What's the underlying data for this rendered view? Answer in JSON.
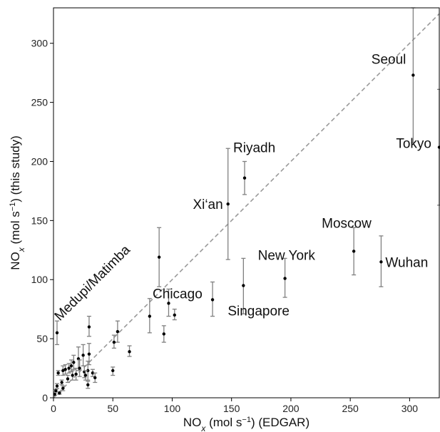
{
  "chart_data": {
    "type": "scatter",
    "title": "",
    "xlabel_parts": {
      "pre": "NO",
      "sub": "x",
      "mid": " (mol s",
      "sup": "−1",
      "post": ") (EDGAR)"
    },
    "ylabel_parts": {
      "pre": "NO",
      "sub": "x",
      "mid": " (mol s",
      "sup": "−1",
      "post": ") (this study)"
    },
    "xlim": [
      0,
      325
    ],
    "ylim": [
      0,
      330
    ],
    "xticks": [
      0,
      50,
      100,
      150,
      200,
      250,
      300
    ],
    "yticks": [
      0,
      50,
      100,
      150,
      200,
      250,
      300
    ],
    "one_to_one_line": true,
    "point_color": "#000000",
    "errorbar_color": "#808080",
    "line_color": "#999999",
    "points": [
      {
        "x": 303,
        "y": 273,
        "yerr_low": 216,
        "yerr_high": 330,
        "label": "Seoul"
      },
      {
        "x": 325,
        "y": 212,
        "yerr_low": 163,
        "yerr_high": 261,
        "label": "Tokyo"
      },
      {
        "x": 161,
        "y": 186,
        "yerr_low": 172,
        "yerr_high": 200,
        "label": "Riyadh"
      },
      {
        "x": 147,
        "y": 164,
        "yerr_low": 117,
        "yerr_high": 211,
        "label": "Xi‘an"
      },
      {
        "x": 253,
        "y": 124,
        "yerr_low": 104,
        "yerr_high": 144,
        "label": "Moscow"
      },
      {
        "x": 276,
        "y": 115,
        "yerr_low": 94,
        "yerr_high": 137,
        "label": "Wuhan"
      },
      {
        "x": 195,
        "y": 101,
        "yerr_low": 85,
        "yerr_high": 118,
        "label": "New York"
      },
      {
        "x": 134,
        "y": 83,
        "yerr_low": 69,
        "yerr_high": 98,
        "label": "Chicago"
      },
      {
        "x": 160,
        "y": 95,
        "yerr_low": 71,
        "yerr_high": 118,
        "label": "Singapore"
      },
      {
        "x": 3,
        "y": 55,
        "yerr_low": 45,
        "yerr_high": 65,
        "label": "Medupi/Matimba"
      },
      {
        "x": 89,
        "y": 119,
        "yerr_low": 94,
        "yerr_high": 144
      },
      {
        "x": 81,
        "y": 69,
        "yerr_low": 55,
        "yerr_high": 84
      },
      {
        "x": 97,
        "y": 80,
        "yerr_low": 69,
        "yerr_high": 92
      },
      {
        "x": 102,
        "y": 70,
        "yerr_low": 66,
        "yerr_high": 75
      },
      {
        "x": 93,
        "y": 54,
        "yerr_low": 47,
        "yerr_high": 61
      },
      {
        "x": 64,
        "y": 39,
        "yerr_low": 35,
        "yerr_high": 44
      },
      {
        "x": 54,
        "y": 56,
        "yerr_low": 47,
        "yerr_high": 65
      },
      {
        "x": 51,
        "y": 47,
        "yerr_low": 42,
        "yerr_high": 53
      },
      {
        "x": 50,
        "y": 23,
        "yerr_low": 19,
        "yerr_high": 26
      },
      {
        "x": 30,
        "y": 60,
        "yerr_low": 52,
        "yerr_high": 69
      },
      {
        "x": 30,
        "y": 37,
        "yerr_low": 28,
        "yerr_high": 46
      },
      {
        "x": 29,
        "y": 23,
        "yerr_low": 15,
        "yerr_high": 31
      },
      {
        "x": 29,
        "y": 11,
        "yerr_low": 8,
        "yerr_high": 14
      },
      {
        "x": 33,
        "y": 21,
        "yerr_low": 18,
        "yerr_high": 24
      },
      {
        "x": 35,
        "y": 17,
        "yerr_low": 13,
        "yerr_high": 21
      },
      {
        "x": 25,
        "y": 36,
        "yerr_low": 27,
        "yerr_high": 45
      },
      {
        "x": 26,
        "y": 22,
        "yerr_low": 17,
        "yerr_high": 27
      },
      {
        "x": 27,
        "y": 19,
        "yerr_low": 15,
        "yerr_high": 23
      },
      {
        "x": 21,
        "y": 33,
        "yerr_low": 23,
        "yerr_high": 43
      },
      {
        "x": 22,
        "y": 25,
        "yerr_low": 18,
        "yerr_high": 32
      },
      {
        "x": 19,
        "y": 20,
        "yerr_low": 15,
        "yerr_high": 25
      },
      {
        "x": 17,
        "y": 30,
        "yerr_low": 24,
        "yerr_high": 36
      },
      {
        "x": 15,
        "y": 27,
        "yerr_low": 22,
        "yerr_high": 32
      },
      {
        "x": 16,
        "y": 19,
        "yerr_low": 15,
        "yerr_high": 23
      },
      {
        "x": 13,
        "y": 25,
        "yerr_low": 21,
        "yerr_high": 29
      },
      {
        "x": 12,
        "y": 16,
        "yerr_low": 13,
        "yerr_high": 19
      },
      {
        "x": 10,
        "y": 24,
        "yerr_low": 20,
        "yerr_high": 28
      },
      {
        "x": 8,
        "y": 23,
        "yerr_low": 19,
        "yerr_high": 27
      },
      {
        "x": 7,
        "y": 13,
        "yerr_low": 11,
        "yerr_high": 15
      },
      {
        "x": 8,
        "y": 8,
        "yerr_low": 6,
        "yerr_high": 10
      },
      {
        "x": 4,
        "y": 21,
        "yerr_low": 19,
        "yerr_high": 23
      },
      {
        "x": 3,
        "y": 10,
        "yerr_low": 8,
        "yerr_high": 12
      },
      {
        "x": 2,
        "y": 6,
        "yerr_low": 5,
        "yerr_high": 7
      },
      {
        "x": 5,
        "y": 4,
        "yerr_low": 3,
        "yerr_high": 5
      },
      {
        "x": 1,
        "y": 3,
        "yerr_low": 2,
        "yerr_high": 4
      }
    ]
  }
}
